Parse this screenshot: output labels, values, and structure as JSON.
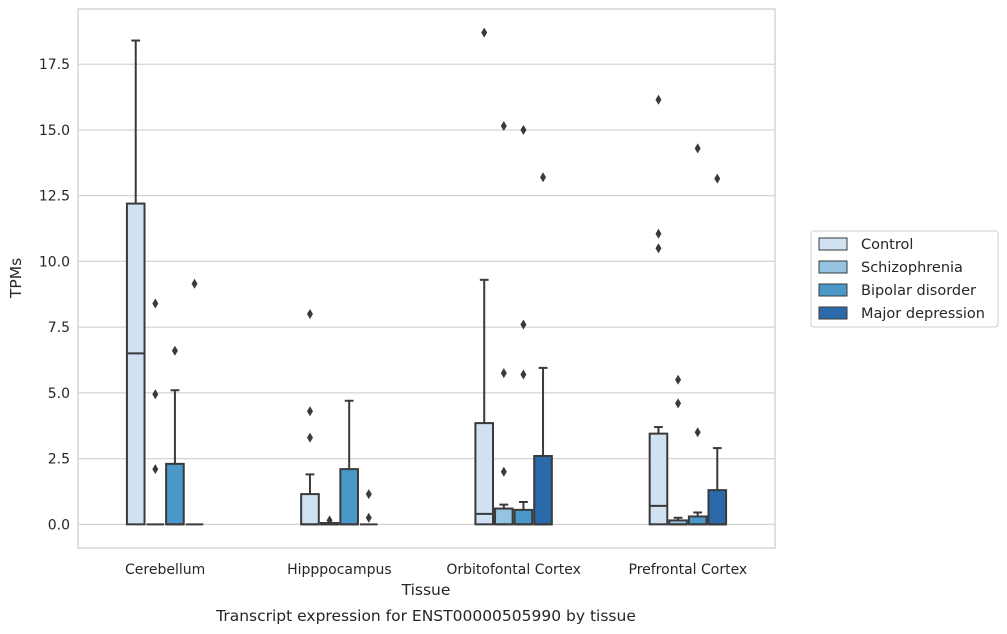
{
  "chart_data": {
    "type": "box",
    "title": "Transcript expression for ENST00000505990 by tissue",
    "xlabel": "Tissue",
    "ylabel": "TPMs",
    "ylim": [
      -0.9,
      19.6
    ],
    "yticks": [
      "0.0",
      "2.5",
      "5.0",
      "7.5",
      "10.0",
      "12.5",
      "15.0",
      "17.5"
    ],
    "grid": "horizontal",
    "legend_position": "right",
    "categories": [
      "Cerebellum",
      "Hipppocampus",
      "Orbitofontal Cortex",
      "Prefrontal Cortex"
    ],
    "series": [
      {
        "name": "Control",
        "color": "#d0e1f2",
        "boxes": [
          {
            "q1": 0.0,
            "median": 6.5,
            "q3": 12.2,
            "whisker_low": 0.0,
            "whisker_high": 18.4,
            "outliers": []
          },
          {
            "q1": 0.0,
            "median": 0.0,
            "q3": 1.15,
            "whisker_low": 0.0,
            "whisker_high": 1.9,
            "outliers": [
              3.3,
              4.3,
              8.0
            ]
          },
          {
            "q1": 0.0,
            "median": 0.4,
            "q3": 3.85,
            "whisker_low": 0.0,
            "whisker_high": 9.3,
            "outliers": [
              18.7
            ]
          },
          {
            "q1": 0.0,
            "median": 0.7,
            "q3": 3.45,
            "whisker_low": 0.0,
            "whisker_high": 3.7,
            "outliers": [
              10.5,
              11.05,
              16.15
            ]
          }
        ]
      },
      {
        "name": "Schizophrenia",
        "color": "#94c4df",
        "boxes": [
          {
            "q1": 0.0,
            "median": 0.0,
            "q3": 0.0,
            "whisker_low": 0.0,
            "whisker_high": 0.0,
            "outliers": [
              2.1,
              4.95,
              8.4
            ]
          },
          {
            "q1": 0.0,
            "median": 0.0,
            "q3": 0.05,
            "whisker_low": 0.0,
            "whisker_high": 0.05,
            "outliers": [
              0.15
            ]
          },
          {
            "q1": 0.0,
            "median": 0.0,
            "q3": 0.6,
            "whisker_low": 0.0,
            "whisker_high": 0.75,
            "outliers": [
              2.0,
              5.75,
              15.15
            ]
          },
          {
            "q1": 0.0,
            "median": 0.0,
            "q3": 0.15,
            "whisker_low": 0.0,
            "whisker_high": 0.25,
            "outliers": [
              4.6,
              5.5
            ]
          }
        ]
      },
      {
        "name": "Bipolar disorder",
        "color": "#4a98c9",
        "boxes": [
          {
            "q1": 0.0,
            "median": 0.0,
            "q3": 2.3,
            "whisker_low": 0.0,
            "whisker_high": 5.1,
            "outliers": [
              6.6
            ]
          },
          {
            "q1": 0.0,
            "median": 0.0,
            "q3": 2.1,
            "whisker_low": 0.0,
            "whisker_high": 4.7,
            "outliers": []
          },
          {
            "q1": 0.0,
            "median": 0.0,
            "q3": 0.55,
            "whisker_low": 0.0,
            "whisker_high": 0.85,
            "outliers": [
              5.7,
              7.6,
              15.0
            ]
          },
          {
            "q1": 0.0,
            "median": 0.0,
            "q3": 0.3,
            "whisker_low": 0.0,
            "whisker_high": 0.45,
            "outliers": [
              3.5,
              14.3
            ]
          }
        ]
      },
      {
        "name": "Major depression",
        "color": "#2a6aaa",
        "boxes": [
          {
            "q1": 0.0,
            "median": 0.0,
            "q3": 0.0,
            "whisker_low": 0.0,
            "whisker_high": 0.0,
            "outliers": [
              9.15
            ]
          },
          {
            "q1": 0.0,
            "median": 0.0,
            "q3": 0.0,
            "whisker_low": 0.0,
            "whisker_high": 0.0,
            "outliers": [
              0.25,
              1.15
            ]
          },
          {
            "q1": 0.0,
            "median": 0.0,
            "q3": 2.6,
            "whisker_low": 0.0,
            "whisker_high": 5.95,
            "outliers": [
              13.2
            ]
          },
          {
            "q1": 0.0,
            "median": 0.0,
            "q3": 1.3,
            "whisker_low": 0.0,
            "whisker_high": 2.9,
            "outliers": [
              13.15
            ]
          }
        ]
      }
    ]
  }
}
